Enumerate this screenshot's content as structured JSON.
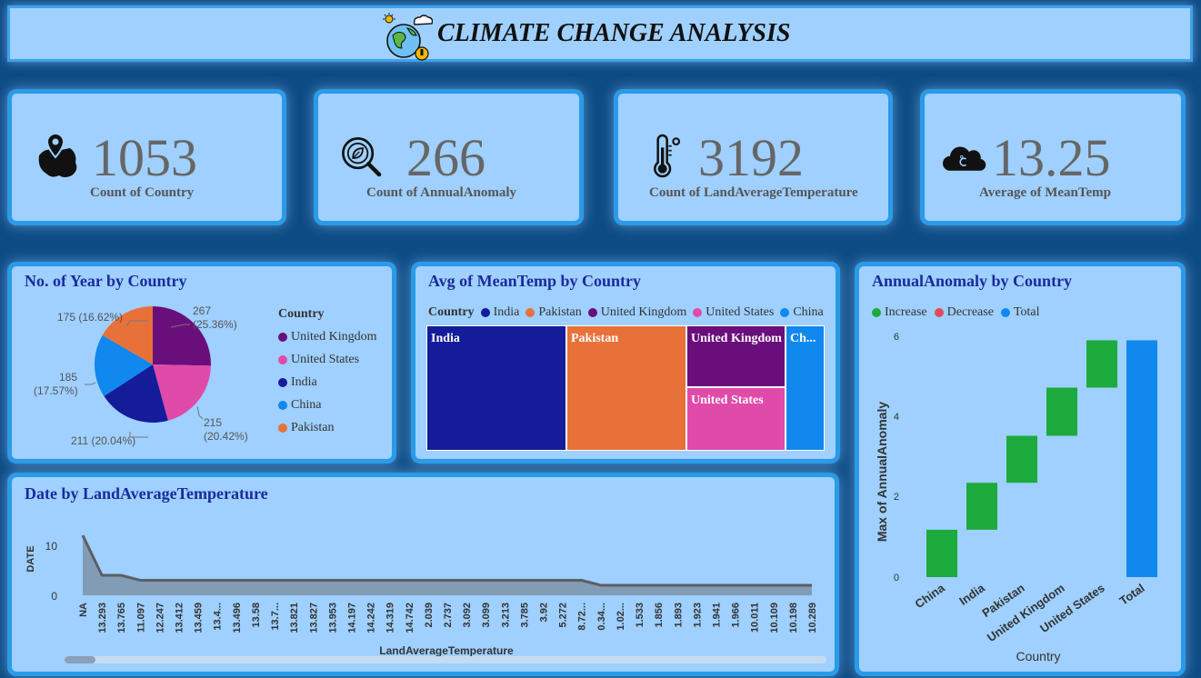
{
  "header": {
    "title": "CLIMATE CHANGE ANALYSIS",
    "icon": "climate-globe-icon"
  },
  "kpis": [
    {
      "value": "1053",
      "label": "Count of Country",
      "icon": "map-pin-icon"
    },
    {
      "value": "266",
      "label": "Count of AnnualAnomaly",
      "icon": "leaf-search-icon"
    },
    {
      "value": "3192",
      "label": "Count of LandAverageTemperature",
      "icon": "thermometer-icon"
    },
    {
      "value": "13.25",
      "label": "Average of MeanTemp",
      "icon": "cloud-celsius-icon"
    }
  ],
  "pie_panel": {
    "title": "No. of Year by Country",
    "legend_title": "Country",
    "legend": [
      "United Kingdom",
      "United States",
      "India",
      "China",
      "Pakistan"
    ],
    "labels": {
      "uk_a": "267",
      "uk_b": "(25.36%)",
      "us_a": "215",
      "us_b": "(20.42%)",
      "india": "211 (20.04%)",
      "china_a": "185",
      "china_b": "(17.57%)",
      "pakistan": "175 (16.62%)"
    }
  },
  "treemap_panel": {
    "title": "Avg of MeanTemp by Country",
    "legend_title": "Country",
    "legend": [
      "India",
      "Pakistan",
      "United Kingdom",
      "United States",
      "China"
    ],
    "tiles": [
      "India",
      "Pakistan",
      "United Kingdom",
      "United States",
      "Ch..."
    ]
  },
  "waterfall_panel": {
    "title": "AnnualAnomaly by Country",
    "legend": [
      "Increase",
      "Decrease",
      "Total"
    ],
    "ylabel": "Max of AnnualAnomaly",
    "xlabel": "Country",
    "yticks": [
      "0",
      "2",
      "4",
      "6"
    ],
    "categories": [
      "China",
      "India",
      "Pakistan",
      "United Kingdom",
      "United States",
      "Total"
    ]
  },
  "area_panel": {
    "title": "Date by LandAverageTemperature",
    "ylabel": "DATE",
    "xlabel": "LandAverageTemperature",
    "yticks": [
      "10",
      "0"
    ]
  },
  "colors": {
    "uk": "#6a0e7c",
    "us": "#e04aa8",
    "india": "#141c9a",
    "china": "#1188ee",
    "pakistan": "#e8713a",
    "increase": "#1daa3c",
    "decrease": "#e04a5c",
    "total": "#1188ee",
    "panel": "#9fd0ff",
    "border": "#2a9be8"
  },
  "chart_data": [
    {
      "type": "pie",
      "title": "No. of Year by Country",
      "categories": [
        "United Kingdom",
        "United States",
        "India",
        "China",
        "Pakistan"
      ],
      "values": [
        267,
        215,
        211,
        185,
        175
      ],
      "percentages": [
        25.36,
        20.42,
        20.04,
        17.57,
        16.62
      ],
      "legend": "right"
    },
    {
      "type": "heatmap",
      "subtype": "treemap",
      "title": "Avg of MeanTemp by Country",
      "categories": [
        "India",
        "Pakistan",
        "United Kingdom",
        "United States",
        "China"
      ],
      "values": [
        26.2,
        22.9,
        9.6,
        8.9,
        7.5
      ]
    },
    {
      "type": "bar",
      "subtype": "waterfall",
      "title": "AnnualAnomaly by Country",
      "categories": [
        "China",
        "India",
        "Pakistan",
        "United Kingdom",
        "United States",
        "Total"
      ],
      "start": [
        0,
        1.18,
        2.35,
        3.52,
        4.72,
        0
      ],
      "end": [
        1.18,
        2.35,
        3.52,
        4.72,
        5.9,
        5.9
      ],
      "series_kind": [
        "Increase",
        "Increase",
        "Increase",
        "Increase",
        "Increase",
        "Total"
      ],
      "ylabel": "Max of AnnualAnomaly",
      "xlabel": "Country",
      "ylim": [
        0,
        6
      ],
      "legend": "top-left"
    },
    {
      "type": "area",
      "title": "Date by LandAverageTemperature",
      "xlabel": "LandAverageTemperature",
      "ylabel": "DATE",
      "x": [
        "NA",
        "13.293",
        "13.765",
        "11.097",
        "12.247",
        "13.412",
        "13.459",
        "13.4...",
        "13.496",
        "13.58",
        "13.7...",
        "13.821",
        "13.827",
        "13.953",
        "14.197",
        "14.242",
        "14.319",
        "14.742",
        "2.039",
        "2.737",
        "3.092",
        "3.099",
        "3.213",
        "3.785",
        "3.92",
        "5.272",
        "8.72...",
        "0.34...",
        "1.02...",
        "1.533",
        "1.856",
        "1.893",
        "1.923",
        "1.941",
        "1.966",
        "10.011",
        "10.109",
        "10.198",
        "10.289"
      ],
      "values": [
        12,
        4,
        4,
        3,
        3,
        3,
        3,
        3,
        3,
        3,
        3,
        3,
        3,
        3,
        3,
        3,
        3,
        3,
        3,
        3,
        3,
        3,
        3,
        3,
        3,
        3,
        3,
        2,
        2,
        2,
        2,
        2,
        2,
        2,
        2,
        2,
        2,
        2,
        2
      ],
      "ylim": [
        0,
        12
      ]
    }
  ]
}
